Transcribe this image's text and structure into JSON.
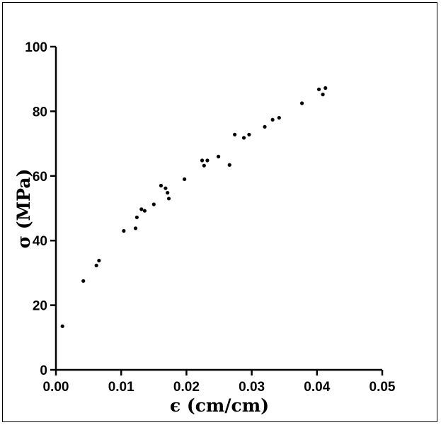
{
  "chart_data": {
    "type": "scatter",
    "title": "",
    "xlabel": "ϵ (cm/cm)",
    "ylabel": "σ (MPa)",
    "xlim": [
      0,
      0.05
    ],
    "ylim": [
      0,
      100
    ],
    "x_ticks": [
      0.0,
      0.01,
      0.02,
      0.03,
      0.04,
      0.05
    ],
    "x_tick_labels": [
      "0.00",
      "0.01",
      "0.02",
      "0.03",
      "0.04",
      "0.05"
    ],
    "y_ticks": [
      0,
      20,
      40,
      60,
      80,
      100
    ],
    "y_tick_labels": [
      "0",
      "20",
      "40",
      "60",
      "80",
      "100"
    ],
    "grid": false,
    "legend": "none",
    "marker_color": "#000000",
    "series": [
      {
        "points": [
          [
            0.001,
            13.5
          ],
          [
            0.0042,
            27.5
          ],
          [
            0.0062,
            32.3
          ],
          [
            0.0066,
            33.8
          ],
          [
            0.0104,
            43.0
          ],
          [
            0.0122,
            43.8
          ],
          [
            0.0124,
            47.2
          ],
          [
            0.0131,
            49.7
          ],
          [
            0.0136,
            49.2
          ],
          [
            0.015,
            51.2
          ],
          [
            0.0161,
            57.0
          ],
          [
            0.0168,
            56.2
          ],
          [
            0.0171,
            54.8
          ],
          [
            0.0173,
            53.0
          ],
          [
            0.0197,
            59.0
          ],
          [
            0.0224,
            64.8
          ],
          [
            0.0227,
            63.2
          ],
          [
            0.0232,
            64.8
          ],
          [
            0.0249,
            66.0
          ],
          [
            0.0266,
            63.4
          ],
          [
            0.0274,
            72.8
          ],
          [
            0.0288,
            71.8
          ],
          [
            0.0296,
            72.8
          ],
          [
            0.032,
            75.2
          ],
          [
            0.0332,
            77.4
          ],
          [
            0.0342,
            78.0
          ],
          [
            0.0377,
            82.5
          ],
          [
            0.0403,
            86.8
          ],
          [
            0.0409,
            85.2
          ],
          [
            0.0413,
            87.2
          ]
        ]
      }
    ]
  }
}
